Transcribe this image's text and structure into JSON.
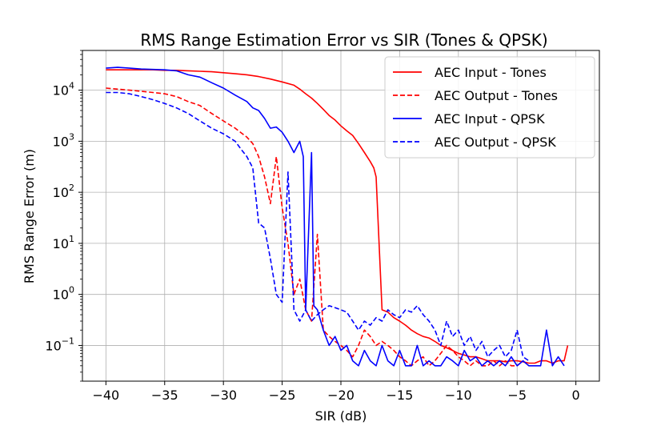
{
  "chart_data": {
    "type": "line",
    "title": "RMS Range Estimation Error vs SIR (Tones & QPSK)",
    "xlabel": "SIR (dB)",
    "ylabel": "RMS Range Error (m)",
    "xlim": [
      -42.0,
      2.0
    ],
    "ylim": [
      0.02,
      60000
    ],
    "yscale": "log",
    "grid": true,
    "legend_position": "top-right",
    "xticks": [
      -40,
      -35,
      -30,
      -25,
      -20,
      -15,
      -10,
      -5,
      0
    ],
    "xtick_labels": [
      "−40",
      "−35",
      "−30",
      "−25",
      "−20",
      "−15",
      "−10",
      "−5",
      "0"
    ],
    "yticks": [
      {
        "value": 0.1,
        "base": "10",
        "exp": "−1"
      },
      {
        "value": 1,
        "base": "10",
        "exp": "0"
      },
      {
        "value": 10,
        "base": "10",
        "exp": "1"
      },
      {
        "value": 100,
        "base": "10",
        "exp": "2"
      },
      {
        "value": 1000,
        "base": "10",
        "exp": "3"
      },
      {
        "value": 10000,
        "base": "10",
        "exp": "4"
      }
    ],
    "series": [
      {
        "name": "AEC Input - Tones",
        "color": "#ff0000",
        "dash": "solid",
        "points": [
          [
            -40,
            25000
          ],
          [
            -39,
            25000
          ],
          [
            -38,
            25000
          ],
          [
            -37,
            25000
          ],
          [
            -36,
            25000
          ],
          [
            -35,
            24500
          ],
          [
            -34,
            24500
          ],
          [
            -33,
            24000
          ],
          [
            -32,
            23500
          ],
          [
            -31,
            23000
          ],
          [
            -30,
            22000
          ],
          [
            -29,
            21000
          ],
          [
            -28,
            20000
          ],
          [
            -27,
            18500
          ],
          [
            -26,
            16500
          ],
          [
            -25,
            14500
          ],
          [
            -24,
            12500
          ],
          [
            -23.5,
            10500
          ],
          [
            -23,
            8500
          ],
          [
            -22.5,
            7000
          ],
          [
            -22,
            5500
          ],
          [
            -21.5,
            4200
          ],
          [
            -21,
            3200
          ],
          [
            -20.5,
            2600
          ],
          [
            -20,
            2000
          ],
          [
            -19.5,
            1600
          ],
          [
            -19,
            1300
          ],
          [
            -18.5,
            900
          ],
          [
            -18,
            600
          ],
          [
            -17.5,
            400
          ],
          [
            -17.2,
            300
          ],
          [
            -17,
            200
          ],
          [
            -16.5,
            0.5
          ],
          [
            -16,
            0.45
          ],
          [
            -15.5,
            0.35
          ],
          [
            -15,
            0.3
          ],
          [
            -14.5,
            0.25
          ],
          [
            -14,
            0.2
          ],
          [
            -13.5,
            0.17
          ],
          [
            -13,
            0.15
          ],
          [
            -12.5,
            0.14
          ],
          [
            -12,
            0.12
          ],
          [
            -11.5,
            0.1
          ],
          [
            -11,
            0.09
          ],
          [
            -10.5,
            0.08
          ],
          [
            -10,
            0.07
          ],
          [
            -9.5,
            0.065
          ],
          [
            -9,
            0.06
          ],
          [
            -8.5,
            0.06
          ],
          [
            -8,
            0.055
          ],
          [
            -7.5,
            0.05
          ],
          [
            -7,
            0.05
          ],
          [
            -6.5,
            0.05
          ],
          [
            -6,
            0.048
          ],
          [
            -5.5,
            0.05
          ],
          [
            -5,
            0.05
          ],
          [
            -4.5,
            0.048
          ],
          [
            -4,
            0.045
          ],
          [
            -3.5,
            0.045
          ],
          [
            -3,
            0.05
          ],
          [
            -2.5,
            0.05
          ],
          [
            -2,
            0.045
          ],
          [
            -1.5,
            0.05
          ],
          [
            -1,
            0.05
          ],
          [
            -0.7,
            0.1
          ]
        ]
      },
      {
        "name": "AEC Output - Tones",
        "color": "#ff0000",
        "dash": "dashed",
        "points": [
          [
            -40,
            11000
          ],
          [
            -39,
            10500
          ],
          [
            -38,
            10000
          ],
          [
            -37,
            9500
          ],
          [
            -36,
            9000
          ],
          [
            -35,
            8500
          ],
          [
            -34,
            7500
          ],
          [
            -33,
            6000
          ],
          [
            -32,
            5000
          ],
          [
            -31,
            3500
          ],
          [
            -30,
            2500
          ],
          [
            -29,
            1800
          ],
          [
            -28,
            1200
          ],
          [
            -27.5,
            900
          ],
          [
            -27,
            500
          ],
          [
            -26.5,
            200
          ],
          [
            -26,
            60
          ],
          [
            -25.5,
            500
          ],
          [
            -25,
            50
          ],
          [
            -24.5,
            10
          ],
          [
            -24,
            1
          ],
          [
            -23.5,
            2
          ],
          [
            -23,
            0.5
          ],
          [
            -22.5,
            0.3
          ],
          [
            -22,
            15
          ],
          [
            -21.5,
            0.2
          ],
          [
            -21,
            0.15
          ],
          [
            -20.5,
            0.12
          ],
          [
            -20,
            0.1
          ],
          [
            -19.5,
            0.08
          ],
          [
            -19,
            0.06
          ],
          [
            -18.5,
            0.1
          ],
          [
            -18,
            0.2
          ],
          [
            -17.5,
            0.15
          ],
          [
            -17,
            0.1
          ],
          [
            -16.5,
            0.12
          ],
          [
            -16,
            0.1
          ],
          [
            -15.5,
            0.08
          ],
          [
            -15,
            0.06
          ],
          [
            -14.5,
            0.05
          ],
          [
            -14,
            0.04
          ],
          [
            -13.5,
            0.05
          ],
          [
            -13,
            0.06
          ],
          [
            -12.5,
            0.04
          ],
          [
            -12,
            0.05
          ],
          [
            -11.5,
            0.07
          ],
          [
            -11,
            0.1
          ],
          [
            -10.5,
            0.08
          ],
          [
            -10,
            0.06
          ],
          [
            -9.5,
            0.05
          ],
          [
            -9,
            0.04
          ],
          [
            -8.5,
            0.05
          ],
          [
            -8,
            0.04
          ],
          [
            -7.5,
            0.04
          ],
          [
            -7,
            0.05
          ],
          [
            -6.5,
            0.04
          ],
          [
            -6,
            0.05
          ],
          [
            -5.5,
            0.04
          ],
          [
            -5,
            0.04
          ],
          [
            -4.5,
            0.05
          ],
          [
            -4,
            0.04
          ]
        ]
      },
      {
        "name": "AEC Input - QPSK",
        "color": "#0000ff",
        "dash": "solid",
        "points": [
          [
            -40,
            27000
          ],
          [
            -39,
            28000
          ],
          [
            -38,
            27000
          ],
          [
            -37,
            26000
          ],
          [
            -36,
            25500
          ],
          [
            -35,
            25000
          ],
          [
            -34,
            24000
          ],
          [
            -33,
            20000
          ],
          [
            -32,
            18000
          ],
          [
            -31,
            14000
          ],
          [
            -30,
            11000
          ],
          [
            -29,
            8000
          ],
          [
            -28,
            6000
          ],
          [
            -27.5,
            4500
          ],
          [
            -27,
            4000
          ],
          [
            -26.5,
            2800
          ],
          [
            -26,
            1800
          ],
          [
            -25.5,
            1900
          ],
          [
            -25,
            1500
          ],
          [
            -24.5,
            1000
          ],
          [
            -24,
            600
          ],
          [
            -23.5,
            1000
          ],
          [
            -23.2,
            500
          ],
          [
            -23,
            0.5
          ],
          [
            -22.5,
            600
          ],
          [
            -22.3,
            0.6
          ],
          [
            -22,
            0.5
          ],
          [
            -21.5,
            0.2
          ],
          [
            -21,
            0.1
          ],
          [
            -20.5,
            0.15
          ],
          [
            -20,
            0.08
          ],
          [
            -19.5,
            0.1
          ],
          [
            -19,
            0.05
          ],
          [
            -18.5,
            0.04
          ],
          [
            -18,
            0.08
          ],
          [
            -17.5,
            0.05
          ],
          [
            -17,
            0.04
          ],
          [
            -16.5,
            0.1
          ],
          [
            -16,
            0.05
          ],
          [
            -15.5,
            0.04
          ],
          [
            -15,
            0.08
          ],
          [
            -14.5,
            0.04
          ],
          [
            -14,
            0.04
          ],
          [
            -13.5,
            0.1
          ],
          [
            -13,
            0.04
          ],
          [
            -12.5,
            0.05
          ],
          [
            -12,
            0.04
          ],
          [
            -11.5,
            0.04
          ],
          [
            -11,
            0.06
          ],
          [
            -10.5,
            0.05
          ],
          [
            -10,
            0.04
          ],
          [
            -9.5,
            0.08
          ],
          [
            -9,
            0.05
          ],
          [
            -8.5,
            0.06
          ],
          [
            -8,
            0.04
          ],
          [
            -7.5,
            0.05
          ],
          [
            -7,
            0.04
          ],
          [
            -6.5,
            0.05
          ],
          [
            -6,
            0.04
          ],
          [
            -5.5,
            0.06
          ],
          [
            -5,
            0.04
          ],
          [
            -4.5,
            0.05
          ],
          [
            -4,
            0.04
          ],
          [
            -3.5,
            0.04
          ],
          [
            -3,
            0.04
          ],
          [
            -2.5,
            0.2
          ],
          [
            -2,
            0.04
          ],
          [
            -1.5,
            0.06
          ],
          [
            -1,
            0.04
          ]
        ]
      },
      {
        "name": "AEC Output - QPSK",
        "color": "#0000ff",
        "dash": "dashed",
        "points": [
          [
            -40,
            9000
          ],
          [
            -39,
            9000
          ],
          [
            -38,
            8500
          ],
          [
            -37,
            7500
          ],
          [
            -36,
            6500
          ],
          [
            -35,
            5500
          ],
          [
            -34,
            4500
          ],
          [
            -33,
            3500
          ],
          [
            -32,
            2500
          ],
          [
            -31,
            1800
          ],
          [
            -30,
            1400
          ],
          [
            -29,
            1000
          ],
          [
            -28.5,
            700
          ],
          [
            -28,
            500
          ],
          [
            -27.5,
            300
          ],
          [
            -27,
            25
          ],
          [
            -26.5,
            20
          ],
          [
            -26,
            5
          ],
          [
            -25.5,
            1
          ],
          [
            -25,
            0.7
          ],
          [
            -24.5,
            250
          ],
          [
            -24,
            0.5
          ],
          [
            -23.5,
            0.3
          ],
          [
            -23,
            0.5
          ],
          [
            -22.5,
            0.3
          ],
          [
            -22,
            0.4
          ],
          [
            -21.5,
            0.5
          ],
          [
            -21,
            0.6
          ],
          [
            -20.5,
            0.55
          ],
          [
            -20,
            0.5
          ],
          [
            -19.5,
            0.45
          ],
          [
            -19,
            0.3
          ],
          [
            -18.5,
            0.2
          ],
          [
            -18,
            0.3
          ],
          [
            -17.5,
            0.25
          ],
          [
            -17,
            0.35
          ],
          [
            -16.5,
            0.3
          ],
          [
            -16,
            0.5
          ],
          [
            -15.5,
            0.4
          ],
          [
            -15,
            0.35
          ],
          [
            -14.5,
            0.5
          ],
          [
            -14,
            0.45
          ],
          [
            -13.5,
            0.6
          ],
          [
            -13,
            0.4
          ],
          [
            -12.5,
            0.3
          ],
          [
            -12,
            0.2
          ],
          [
            -11.5,
            0.1
          ],
          [
            -11,
            0.3
          ],
          [
            -10.5,
            0.15
          ],
          [
            -10,
            0.2
          ],
          [
            -9.5,
            0.1
          ],
          [
            -9,
            0.15
          ],
          [
            -8.5,
            0.08
          ],
          [
            -8,
            0.12
          ],
          [
            -7.5,
            0.06
          ],
          [
            -7,
            0.08
          ],
          [
            -6.5,
            0.1
          ],
          [
            -6,
            0.06
          ],
          [
            -5.5,
            0.08
          ],
          [
            -5,
            0.2
          ],
          [
            -4.5,
            0.06
          ],
          [
            -4,
            0.05
          ]
        ]
      }
    ]
  }
}
